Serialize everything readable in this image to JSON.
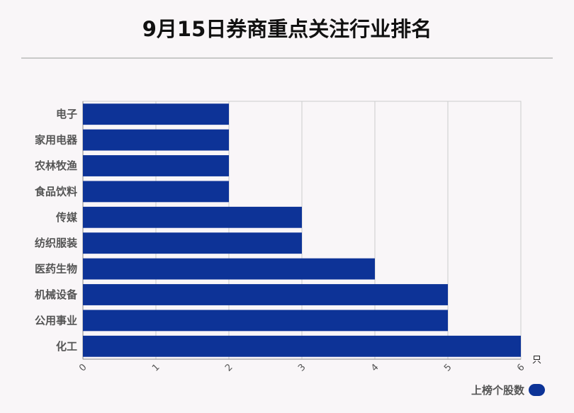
{
  "title": "9月15日券商重点关注行业排名",
  "colors": {
    "bar": "#0d3397",
    "grid": "#cccccc",
    "axis": "#888888"
  },
  "chart_data": {
    "type": "bar",
    "orientation": "horizontal",
    "categories": [
      "电子",
      "家用电器",
      "农林牧渔",
      "食品饮料",
      "传媒",
      "纺织服装",
      "医药生物",
      "机械设备",
      "公用事业",
      "化工"
    ],
    "series": [
      {
        "name": "上榜个股数",
        "values": [
          2,
          2,
          2,
          2,
          3,
          3,
          4,
          5,
          5,
          6
        ]
      }
    ],
    "xlim": [
      0,
      6
    ],
    "xticks": [
      "0",
      "1",
      "2",
      "3",
      "4",
      "5",
      "6"
    ],
    "x_unit": "只",
    "grid": true,
    "legend_position": "bottom-right"
  }
}
